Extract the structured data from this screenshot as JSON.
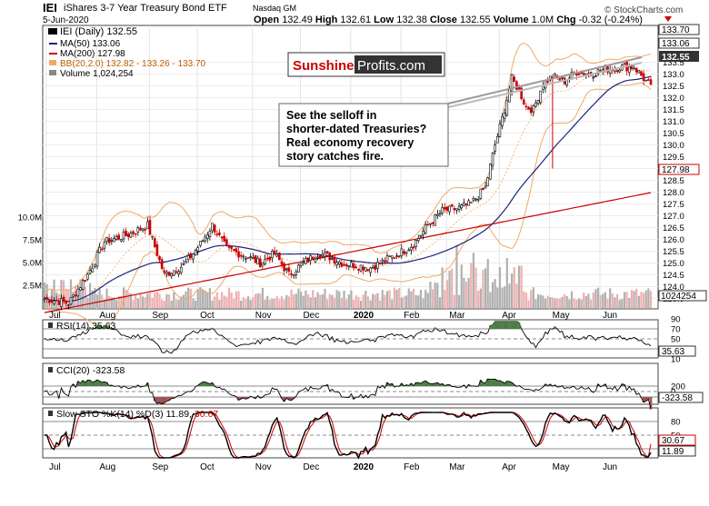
{
  "header": {
    "symbol": "IEI",
    "name": "iShares 3-7 Year Treasury Bond ETF",
    "exchange": "Nasdaq GM",
    "date": "5-Jun-2020",
    "watermark": "© StockCharts.com",
    "open_label": "Open",
    "open": "132.49",
    "high_label": "High",
    "high": "132.61",
    "low_label": "Low",
    "low": "132.38",
    "close_label": "Close",
    "close": "132.55",
    "volume_label": "Volume",
    "volume": "1.0M",
    "chg_label": "Chg",
    "chg": "-0.32 (-0.24%)"
  },
  "legend": {
    "price": "IEI (Daily) 132.55",
    "ma50": "MA(50) 133.06",
    "ma200": "MA(200) 127.98",
    "bb": "BB(20,2.0) 132.82 - 133.26 - 133.70",
    "volume": "Volume 1,024,254"
  },
  "logo": {
    "part1": "Sunshine",
    "part2": "Profits.com"
  },
  "annotation": [
    "See the selloff in",
    "shorter-dated Treasuries?",
    "Real economy recovery",
    "story catches fire."
  ],
  "colors": {
    "ma50": "#1a237e",
    "ma200": "#cc0000",
    "bb": "#f0a868",
    "up": "#000000",
    "down": "#cc0000",
    "volume": "#b0b0b0",
    "volume_down": "#f0b0b0",
    "osc_fill": "#4a7c43",
    "osc_fill_neg": "#a05050",
    "sto_k": "#000000",
    "sto_d": "#cc0000",
    "logo_red": "#cc0000",
    "tag_dark": "#333333"
  },
  "chart_data": {
    "type": "line",
    "x_labels": [
      "Jul",
      "Aug",
      "Sep",
      "Oct",
      "Nov",
      "Dec",
      "2020",
      "Feb",
      "Mar",
      "Apr",
      "May",
      "Jun"
    ],
    "price_axis": {
      "ticks": [
        "133.5",
        "133.0",
        "132.5",
        "132.0",
        "131.5",
        "131.0",
        "130.5",
        "130.0",
        "129.5",
        "129.0",
        "128.5",
        "128.0",
        "127.5",
        "127.0",
        "126.5",
        "126.0",
        "125.5",
        "125.0",
        "124.5",
        "124.0",
        "123.5"
      ],
      "ylim": [
        123.0,
        134.0
      ],
      "tags": [
        {
          "text": "133.70",
          "style": "outline"
        },
        {
          "text": "133.06",
          "style": "outline"
        },
        {
          "text": "132.55",
          "style": "dark"
        },
        {
          "text": "127.98",
          "style": "outline"
        },
        {
          "text": "1024254",
          "style": "outline"
        }
      ]
    },
    "volume_axis": {
      "ticks": [
        "10.0M",
        "7.5M",
        "5.0M",
        "2.5M"
      ],
      "ylim": [
        0,
        12.5
      ]
    },
    "series": [
      {
        "name": "IEI (Daily)",
        "anchors": [
          [
            0,
            123.5
          ],
          [
            10,
            123.3
          ],
          [
            18,
            124.5
          ],
          [
            25,
            125.9
          ],
          [
            35,
            126.2
          ],
          [
            43,
            126.6
          ],
          [
            50,
            124.5
          ],
          [
            58,
            124.9
          ],
          [
            65,
            125.8
          ],
          [
            70,
            126.6
          ],
          [
            76,
            125.6
          ],
          [
            84,
            125.3
          ],
          [
            90,
            125.0
          ],
          [
            96,
            125.4
          ],
          [
            102,
            124.5
          ],
          [
            108,
            125.0
          ],
          [
            114,
            125.4
          ],
          [
            118,
            125.3
          ],
          [
            124,
            125.0
          ],
          [
            130,
            124.9
          ],
          [
            136,
            124.8
          ],
          [
            142,
            125.1
          ],
          [
            148,
            125.4
          ],
          [
            154,
            125.8
          ],
          [
            160,
            126.6
          ],
          [
            166,
            127.2
          ],
          [
            172,
            127.3
          ],
          [
            178,
            127.5
          ],
          [
            184,
            128.2
          ],
          [
            188,
            130.0
          ],
          [
            192,
            131.5
          ],
          [
            195,
            132.8
          ],
          [
            198,
            132.3
          ],
          [
            201,
            131.6
          ],
          [
            204,
            131.5
          ],
          [
            208,
            132.6
          ],
          [
            212,
            132.9
          ],
          [
            217,
            132.7
          ],
          [
            222,
            133.1
          ],
          [
            228,
            133.0
          ],
          [
            234,
            133.2
          ],
          [
            240,
            133.3
          ],
          [
            246,
            133.3
          ],
          [
            251,
            132.7
          ],
          [
            253,
            132.55
          ]
        ],
        "close": 132.55
      },
      {
        "name": "MA(50)",
        "value": 133.06
      },
      {
        "name": "MA(200)",
        "value": 127.98
      },
      {
        "name": "BB(20,2.0)",
        "values": [
          132.82,
          133.26,
          133.7
        ]
      },
      {
        "name": "Volume",
        "value": 1024254
      }
    ],
    "indicators": [
      {
        "name": "RSI(14)",
        "value": 35.63,
        "label": "RSI(14) 35.63",
        "ticks": [
          "90",
          "70",
          "50",
          "30",
          "10"
        ],
        "value_tag": "35.63",
        "ylim": [
          0,
          100
        ]
      },
      {
        "name": "CCI(20)",
        "value": -323.58,
        "label": "CCI(20) -323.58",
        "ticks": [
          "200",
          "0",
          "-200"
        ],
        "value_tag": "-323.58",
        "ylim": [
          -360,
          310
        ]
      },
      {
        "name": "Slow STO %K(14) %D(3)",
        "k": 11.89,
        "d": 30.67,
        "label": "Slow STO %K(14) %D(3) 11.89,",
        "label_d": "30.67",
        "ticks": [
          "80",
          "50",
          "20"
        ],
        "tags": [
          "30.67",
          "11.89"
        ],
        "ylim": [
          0,
          100
        ]
      }
    ]
  }
}
